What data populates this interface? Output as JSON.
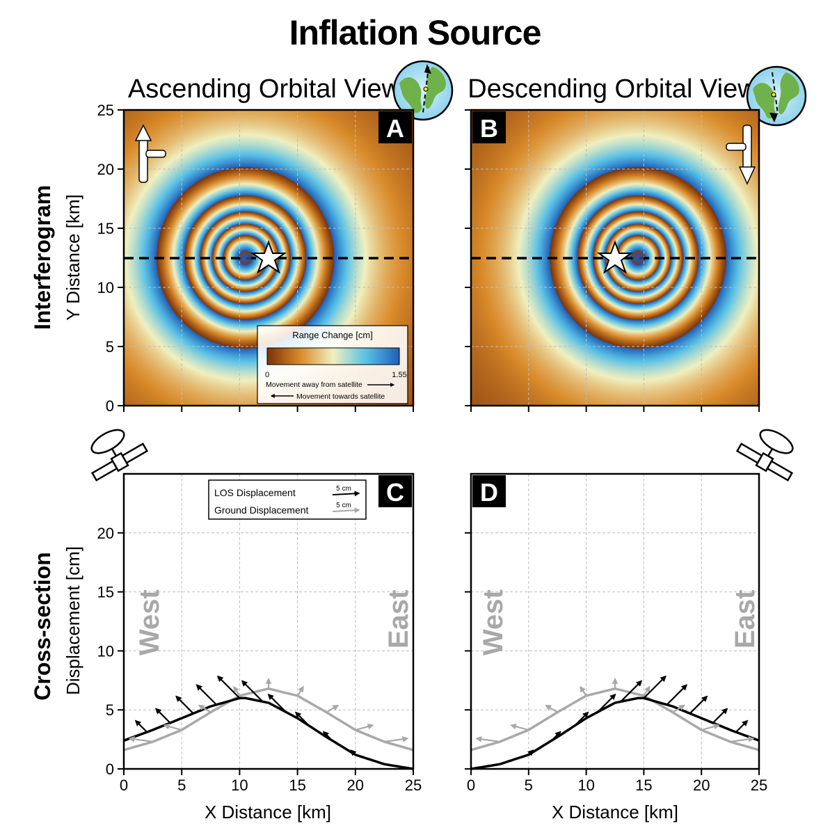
{
  "title": "Inflation Source",
  "views": {
    "ascending": "Ascending Orbital View",
    "descending": "Descending Orbital View"
  },
  "row_labels": {
    "interferogram": "Interferogram",
    "cross_section": "Cross-section"
  },
  "panels": {
    "a": "A",
    "b": "B",
    "c": "C",
    "d": "D"
  },
  "colors": {
    "dark": "#7a3208",
    "light": "#f0f0c0",
    "blue": "#1f5fb8",
    "gray": "#a8a8a8",
    "black": "#000000"
  },
  "colorbar": {
    "title": "Range Change [cm]",
    "min_label": "0",
    "max_label": "1.55",
    "away": "Movement away from satellite",
    "towards": "Movement towards satellite"
  },
  "section_legend": {
    "los": "LOS Displacement",
    "ground": "Ground Displacement",
    "scale": "5 cm"
  },
  "directions": {
    "west": "West",
    "east": "East"
  },
  "chart_data": [
    {
      "type": "heatmap",
      "panel": "A",
      "title": "Ascending Orbital View",
      "xlabel": "",
      "ylabel": "Y Distance [km]",
      "xlim": [
        0,
        25
      ],
      "ylim": [
        0,
        25
      ],
      "xticks": [
        0,
        5,
        10,
        15,
        20,
        25
      ],
      "yticks": [
        0,
        5,
        10,
        15,
        20,
        25
      ],
      "yticklabels": [
        "0",
        "5",
        "10",
        "15",
        "20",
        "25"
      ],
      "fringe_center": [
        10.5,
        12.5
      ],
      "source_location": [
        12.5,
        12.5
      ],
      "profile_line_y": 12.5,
      "fringe_period_cm": 1.55,
      "colorbar_range": [
        0,
        1.55
      ]
    },
    {
      "type": "heatmap",
      "panel": "B",
      "title": "Descending Orbital View",
      "xlim": [
        0,
        25
      ],
      "ylim": [
        0,
        25
      ],
      "xticks": [
        0,
        5,
        10,
        15,
        20,
        25
      ],
      "yticks": [
        0,
        5,
        10,
        15,
        20,
        25
      ],
      "fringe_center": [
        14.5,
        12.5
      ],
      "source_location": [
        12.5,
        12.5
      ],
      "profile_line_y": 12.5,
      "fringe_period_cm": 1.55
    },
    {
      "type": "line",
      "panel": "C",
      "xlabel": "X Distance [km]",
      "ylabel": "Displacement [cm]",
      "xlim": [
        0,
        25
      ],
      "ylim": [
        0,
        25
      ],
      "xticks": [
        0,
        5,
        10,
        15,
        20,
        25
      ],
      "xticklabels": [
        "0",
        "5",
        "10",
        "15",
        "20",
        "25"
      ],
      "yticks": [
        0,
        5,
        10,
        15,
        20
      ],
      "yticklabels": [
        "0",
        "5",
        "10",
        "15",
        "20"
      ],
      "series": [
        {
          "name": "LOS Displacement",
          "x": [
            0,
            2.5,
            5,
            7.5,
            10,
            10.5,
            12.5,
            15,
            17.5,
            20,
            22.5,
            25
          ],
          "values": [
            2.4,
            3.3,
            4.3,
            5.3,
            6.0,
            6.0,
            5.6,
            4.3,
            2.7,
            1.2,
            0.4,
            0.0
          ]
        },
        {
          "name": "Ground Displacement",
          "x": [
            0,
            2.5,
            5,
            7.5,
            10,
            12.5,
            15,
            17.5,
            20,
            22.5,
            25
          ],
          "values": [
            1.6,
            2.3,
            3.3,
            4.8,
            6.2,
            6.8,
            6.2,
            4.8,
            3.3,
            2.3,
            1.6
          ]
        }
      ],
      "arrows_los_x": [
        2,
        4,
        6,
        8,
        10,
        12,
        14,
        16,
        18,
        20
      ],
      "arrows_ground_x": [
        2.5,
        5,
        7.5,
        10,
        12.5,
        15,
        17.5,
        20,
        22.5
      ]
    },
    {
      "type": "line",
      "panel": "D",
      "xlabel": "X Distance [km]",
      "xlim": [
        0,
        25
      ],
      "ylim": [
        0,
        25
      ],
      "xticks": [
        0,
        5,
        10,
        15,
        20,
        25
      ],
      "xticklabels": [
        "0",
        "5",
        "10",
        "15",
        "20",
        "25"
      ],
      "series": [
        {
          "name": "LOS Displacement",
          "x": [
            0,
            2.5,
            5,
            7.5,
            10,
            12.5,
            14.5,
            15,
            17.5,
            20,
            22.5,
            25
          ],
          "values": [
            0.0,
            0.4,
            1.2,
            2.7,
            4.3,
            5.6,
            6.0,
            6.0,
            5.3,
            4.3,
            3.3,
            2.4
          ]
        },
        {
          "name": "Ground Displacement",
          "x": [
            0,
            2.5,
            5,
            7.5,
            10,
            12.5,
            15,
            17.5,
            20,
            22.5,
            25
          ],
          "values": [
            1.6,
            2.3,
            3.3,
            4.8,
            6.2,
            6.8,
            6.2,
            4.8,
            3.3,
            2.3,
            1.6
          ]
        }
      ],
      "arrows_los_x": [
        5,
        7,
        9,
        11,
        13,
        15,
        17,
        19,
        21,
        23
      ],
      "arrows_ground_x": [
        2.5,
        5,
        7.5,
        10,
        12.5,
        15,
        17.5,
        20,
        22.5
      ]
    }
  ]
}
